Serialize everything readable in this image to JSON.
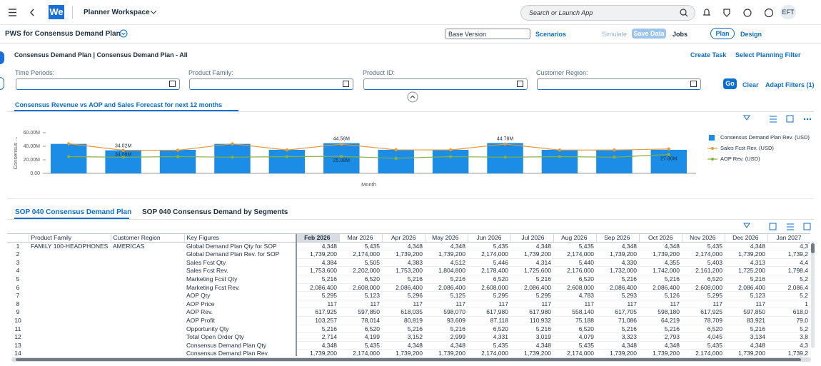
{
  "header": {
    "logo": "We",
    "app_title": "Planner Workspace",
    "search_placeholder": "Search or Launch App",
    "user_initials": "EFT"
  },
  "page": {
    "title": "PWS for Consensus Demand Plan",
    "version": "Base Version",
    "scenarios": "Scenarios",
    "simulate": "Simulate",
    "save_data": "Save Data",
    "jobs": "Jobs",
    "plan": "Plan",
    "design": "Design"
  },
  "panel": {
    "title": "Consensus Demand Plan | Consensus Demand Plan - All",
    "create_task": "Create Task",
    "select_filter": "Select Planning Filter"
  },
  "filters": {
    "fields": [
      "Time Periods:",
      "Product Family:",
      "Product ID:",
      "Customer Region:"
    ],
    "go": "Go",
    "clear": "Clear",
    "adapt": "Adapt Filters (1)"
  },
  "chart_tab": "Consensus Revenue vs AOP and Sales Forecast for next 12 months",
  "chart_data": {
    "type": "combo",
    "y_label": "Consensus ...",
    "x_label": "Month",
    "categories": [
      null,
      null,
      null,
      null,
      null,
      null,
      null,
      null,
      null,
      null,
      null,
      null
    ],
    "ylim": [
      0,
      60
    ],
    "yticks": [
      {
        "value": 0,
        "label": "0.00"
      },
      {
        "value": 20,
        "label": "20.00M"
      },
      {
        "value": 40,
        "label": "40.00M"
      },
      {
        "value": 60,
        "label": "60.00M"
      }
    ],
    "grid": false,
    "legend": "right",
    "series": [
      {
        "name": "Consensus Demand Plan Rev. (USD)",
        "type": "bar",
        "color": "#1b8de6",
        "values": [
          43.5,
          34.02,
          34.8,
          43.5,
          34.8,
          44.56,
          34.8,
          34.8,
          44.78,
          34.8,
          34.8,
          34.8
        ],
        "value_labels": [
          null,
          "34.02M",
          null,
          null,
          null,
          "44.56M",
          null,
          null,
          "44.78M",
          null,
          null,
          null
        ]
      },
      {
        "name": "Sales Fcst Rev. (USD)",
        "type": "line",
        "color": "#e29a3a",
        "values": [
          43.8,
          34.06,
          34.1,
          43.6,
          34.5,
          43.1,
          34.8,
          34.6,
          43.2,
          34.4,
          34.5,
          36.0
        ],
        "value_labels": [
          null,
          "34.06M",
          null,
          null,
          null,
          null,
          null,
          null,
          null,
          null,
          null,
          null
        ]
      },
      {
        "name": "AOP Rev. (USD)",
        "type": "line",
        "color": "#86b03a",
        "values": [
          24.7,
          23.9,
          24.7,
          23.9,
          24.7,
          25.08,
          22.3,
          24.7,
          23.9,
          24.7,
          23.9,
          27.8
        ],
        "value_labels": [
          null,
          null,
          null,
          null,
          null,
          "25.08M",
          null,
          null,
          null,
          null,
          null,
          "27.80M"
        ]
      }
    ]
  },
  "table_tabs": [
    "SOP 040 Consensus Demand Plan",
    "SOP 040 Consensus Demand by Segments"
  ],
  "table": {
    "columns": [
      "Product Family",
      "Customer Region",
      "Key Figures",
      "Feb 2026",
      "Mar 2026",
      "Apr 2026",
      "May 2026",
      "Jun 2026",
      "Jul 2026",
      "Aug 2026",
      "Sep 2026",
      "Oct 2026",
      "Nov 2026",
      "Dec 2026",
      "Jan 2027"
    ],
    "rows": [
      [
        "1",
        "FAMILY 100-HEADPHONES",
        "AMERICAS",
        "Global Demand Plan Qty for SOP",
        "4,348",
        "5,435",
        "4,348",
        "4,348",
        "5,435",
        "4,348",
        "5,435",
        "4,348",
        "4,348",
        "5,435",
        "4,348",
        "4,3"
      ],
      [
        "2",
        null,
        null,
        "Global Demand Plan Rev. for SOP",
        "1,739,200",
        "2,174,000",
        "1,739,200",
        "1,739,200",
        "2,174,000",
        "1,739,200",
        "2,174,000",
        "1,739,200",
        "1,739,200",
        "2,174,000",
        "1,739,200",
        "1,739,2"
      ],
      [
        "3",
        null,
        null,
        "Sales Fcst Qty",
        "4,384",
        "5,505",
        "4,383",
        "4,512",
        "5,446",
        "4,314",
        "5,440",
        "4,330",
        "4,355",
        "5,403",
        "4,313",
        "4,4"
      ],
      [
        "4",
        null,
        null,
        "Sales Fcst Rev.",
        "1,753,600",
        "2,202,000",
        "1,753,200",
        "1,804,800",
        "2,178,400",
        "1,725,600",
        "2,176,000",
        "1,732,000",
        "1,742,000",
        "2,161,200",
        "1,725,200",
        "1,798,4"
      ],
      [
        "5",
        null,
        null,
        "Marketing Fcst Qty",
        "5,216",
        "6,520",
        "5,216",
        "5,216",
        "6,520",
        "5,216",
        "6,520",
        "5,216",
        "5,216",
        "6,520",
        "5,216",
        "5,2"
      ],
      [
        "6",
        null,
        null,
        "Marketing Fcst Rev.",
        "2,086,400",
        "2,608,000",
        "2,086,400",
        "2,086,400",
        "2,608,000",
        "2,086,400",
        "2,608,000",
        "2,086,400",
        "2,086,400",
        "2,608,000",
        "2,086,400",
        "2,086,4"
      ],
      [
        "7",
        null,
        null,
        "AOP Qty",
        "5,295",
        "5,123",
        "5,296",
        "5,125",
        "5,295",
        "5,295",
        "4,783",
        "5,293",
        "5,126",
        "5,295",
        "5,123",
        "5,2"
      ],
      [
        "8",
        null,
        null,
        "AOP Price",
        "117",
        "117",
        "117",
        "117",
        "117",
        "117",
        "117",
        "117",
        "117",
        "117",
        "117",
        "1"
      ],
      [
        "9",
        null,
        null,
        "AOP Rev.",
        "617,925",
        "597,850",
        "618,035",
        "598,070",
        "617,980",
        "617,980",
        "558,140",
        "617,705",
        "598,180",
        "617,925",
        "597,850",
        "618,0"
      ],
      [
        "10",
        null,
        null,
        "AOP Profit",
        "103,257",
        "78,014",
        "80,819",
        "93,609",
        "87,118",
        "110,932",
        "75,188",
        "71,086",
        "64,219",
        "78,709",
        "83,921",
        "79,0"
      ],
      [
        "11",
        null,
        null,
        "Opportunity Qty",
        "5,216",
        "6,520",
        "5,216",
        "5,216",
        "6,520",
        "5,216",
        "6,520",
        "5,216",
        "5,216",
        "6,520",
        "5,216",
        "5,2"
      ],
      [
        "12",
        null,
        null,
        "Total Open Order Qty",
        "2,714",
        "4,199",
        "3,152",
        "2,999",
        "4,331",
        "3,019",
        "4,079",
        "3,323",
        "2,793",
        "4,045",
        "3,134",
        "3,8"
      ],
      [
        "13",
        null,
        null,
        "Consensus Demand Plan Qty",
        "4,348",
        "5,435",
        "4,348",
        "4,348",
        "5,435",
        "4,348",
        "5,435",
        "4,348",
        "4,348",
        "5,435",
        "4,348",
        "4,3"
      ],
      [
        "14",
        null,
        null,
        "Consensus Demand Plan Rev.",
        "1,739,200",
        "2,174,000",
        "1,739,200",
        "1,739,200",
        "2,174,000",
        "1,739,200",
        "2,174,000",
        "1,739,200",
        "1,739,200",
        "2,174,000",
        "1,739,200",
        "1,739,2"
      ]
    ]
  }
}
